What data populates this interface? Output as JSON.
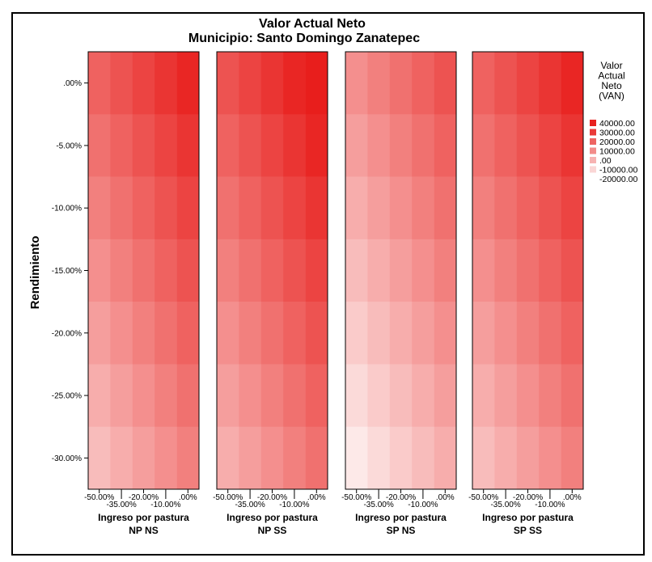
{
  "chart_data": {
    "type": "heatmap",
    "title": "Valor Actual Neto",
    "subtitle": "Municipio: Santo Domingo Zanatepec",
    "ylabel": "Rendimiento",
    "y_categories": [
      ".00%",
      "-5.00%",
      "-10.00%",
      "-15.00%",
      "-20.00%",
      "-25.00%",
      "-30.00%"
    ],
    "x_categories": [
      "-50.00%",
      "-35.00%",
      "-20.00%",
      "-10.00%",
      ".00%"
    ],
    "x_ticks_upper": [
      "-50.00%",
      "-20.00%",
      ".00%"
    ],
    "x_ticks_lower": [
      "-35.00%",
      "-10.00%"
    ],
    "panels": [
      {
        "xlabel": "Ingreso por pastura",
        "label": "NP NS",
        "values": [
          [
            22000,
            26000,
            30000,
            34000,
            38000
          ],
          [
            18000,
            22000,
            26000,
            30000,
            34000
          ],
          [
            14000,
            18000,
            22000,
            26000,
            30000
          ],
          [
            10000,
            14000,
            18000,
            22000,
            26000
          ],
          [
            6000,
            10000,
            14000,
            18000,
            22000
          ],
          [
            2000,
            6000,
            10000,
            14000,
            18000
          ],
          [
            -2000,
            2000,
            6000,
            10000,
            14000
          ]
        ]
      },
      {
        "xlabel": "Ingreso por pastura",
        "label": "NP SS",
        "values": [
          [
            26000,
            30000,
            34000,
            38000,
            42000
          ],
          [
            22000,
            26000,
            30000,
            34000,
            38000
          ],
          [
            18000,
            22000,
            26000,
            30000,
            34000
          ],
          [
            14000,
            18000,
            22000,
            26000,
            30000
          ],
          [
            10000,
            14000,
            18000,
            22000,
            26000
          ],
          [
            6000,
            10000,
            14000,
            18000,
            22000
          ],
          [
            2000,
            6000,
            10000,
            14000,
            18000
          ]
        ]
      },
      {
        "xlabel": "Ingreso por pastura",
        "label": "SP NS",
        "values": [
          [
            10000,
            14000,
            18000,
            22000,
            26000
          ],
          [
            6000,
            10000,
            14000,
            18000,
            22000
          ],
          [
            2000,
            6000,
            10000,
            14000,
            18000
          ],
          [
            -2000,
            2000,
            6000,
            10000,
            14000
          ],
          [
            -6000,
            -2000,
            2000,
            6000,
            10000
          ],
          [
            -10000,
            -6000,
            -2000,
            2000,
            6000
          ],
          [
            -14000,
            -10000,
            -6000,
            -2000,
            2000
          ]
        ]
      },
      {
        "xlabel": "Ingreso por pastura",
        "label": "SP SS",
        "values": [
          [
            22000,
            26000,
            30000,
            34000,
            38000
          ],
          [
            18000,
            22000,
            26000,
            30000,
            34000
          ],
          [
            14000,
            18000,
            22000,
            26000,
            30000
          ],
          [
            10000,
            14000,
            18000,
            22000,
            26000
          ],
          [
            6000,
            10000,
            14000,
            18000,
            22000
          ],
          [
            2000,
            6000,
            10000,
            14000,
            18000
          ],
          [
            -2000,
            2000,
            6000,
            10000,
            14000
          ]
        ]
      }
    ],
    "legend": {
      "title": [
        "Valor",
        "Actual",
        "Neto",
        "(VAN)"
      ],
      "position": "right",
      "entries": [
        "40000.00",
        "30000.00",
        "20000.00",
        "10000.00",
        ".00",
        "-10000.00",
        "-20000.00"
      ],
      "colors": [
        "#e8211f",
        "#ea3a38",
        "#ee6462",
        "#f28c8a",
        "#f6b3b2",
        "#fad6d5",
        "#ffffff"
      ]
    },
    "color_scale": {
      "min": -20000,
      "max": 40000,
      "low_color": "#ffffff",
      "high_color": "#e81e1c"
    }
  }
}
